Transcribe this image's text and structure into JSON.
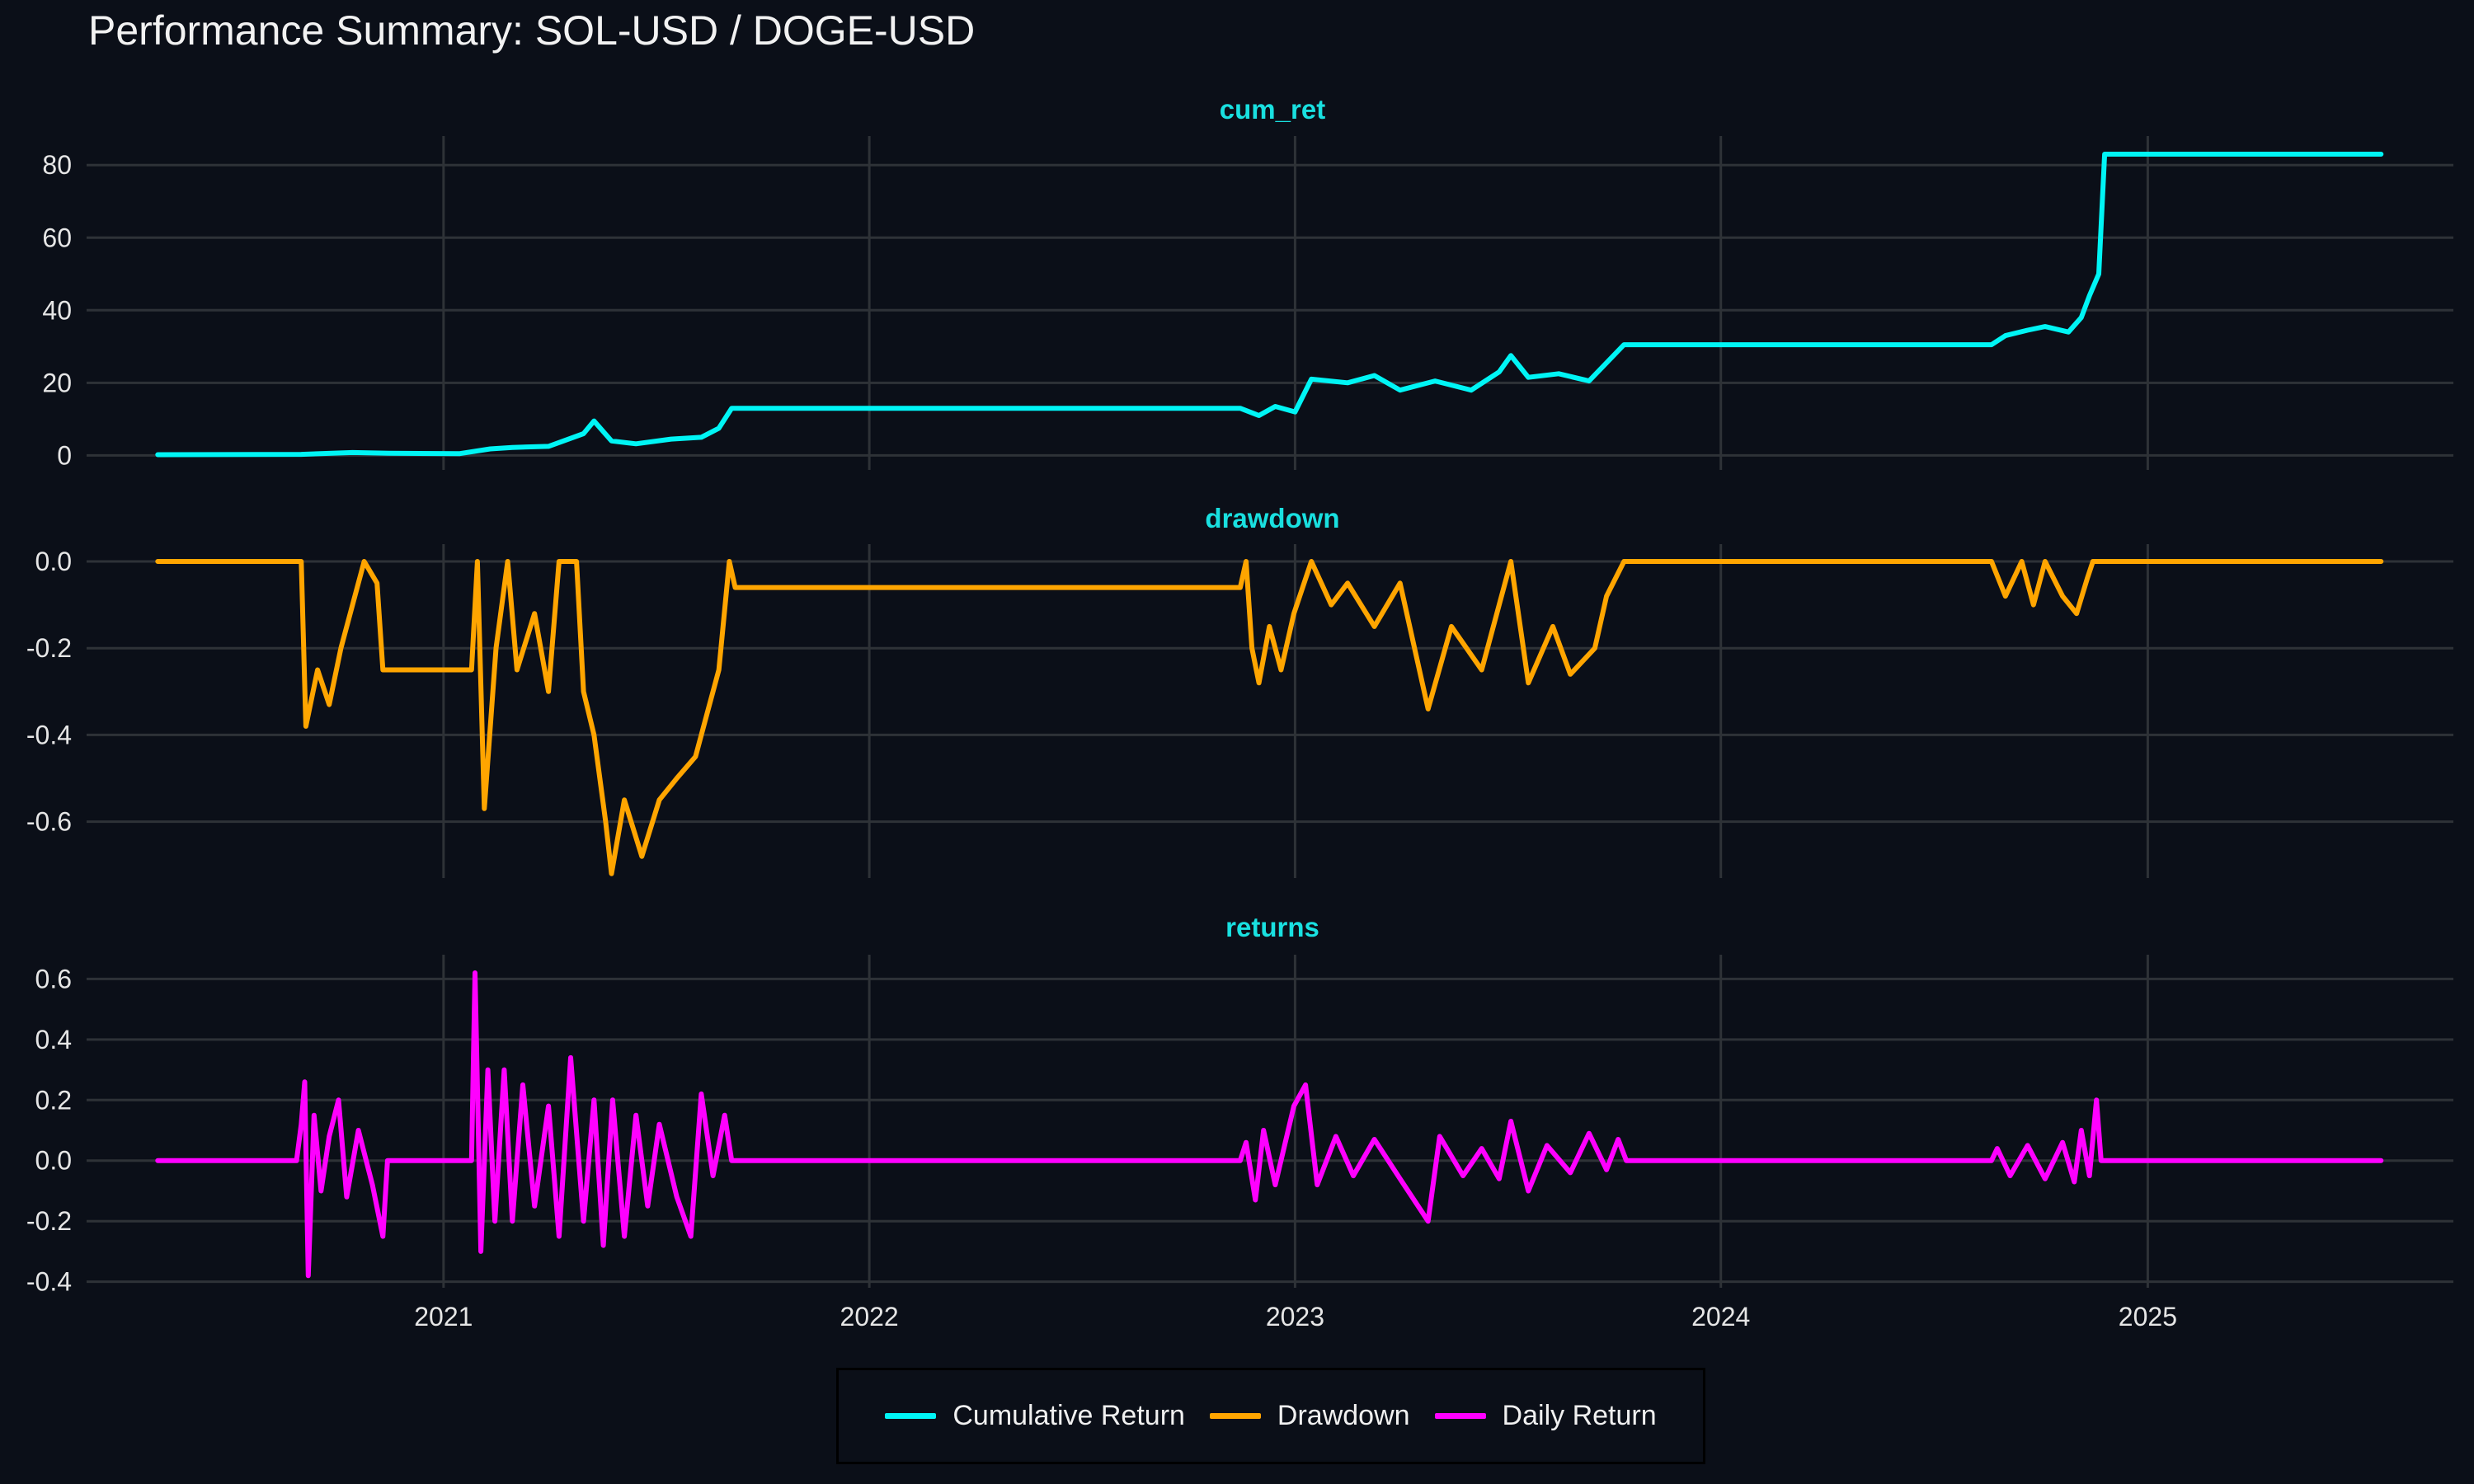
{
  "title": "Performance Summary: SOL-USD / DOGE-USD",
  "chart_data": {
    "type": "line",
    "x_ticks": [
      "2021",
      "2022",
      "2023",
      "2024",
      "2025"
    ],
    "x_range": [
      "2020-03-01",
      "2025-09-20"
    ],
    "grid": true,
    "legend_position": "bottom",
    "legend": [
      {
        "label": "Cumulative Return",
        "color": "#00f5f5"
      },
      {
        "label": "Drawdown",
        "color": "#ffa500"
      },
      {
        "label": "Daily Return",
        "color": "#ff00ff"
      }
    ],
    "panels": [
      {
        "title": "cum_ret",
        "series": "Cumulative Return",
        "color": "#00f5f5",
        "ylim": [
          -4,
          88
        ],
        "y_ticks": [
          0,
          20,
          40,
          60,
          80
        ],
        "y_tick_labels": [
          "0",
          "20",
          "40",
          "60",
          "80"
        ],
        "points": [
          [
            "2020-05-01",
            0.2
          ],
          [
            "2020-09-01",
            0.3
          ],
          [
            "2020-10-15",
            0.8
          ],
          [
            "2020-11-15",
            0.6
          ],
          [
            "2021-01-15",
            0.5
          ],
          [
            "2021-02-10",
            1.8
          ],
          [
            "2021-03-01",
            2.2
          ],
          [
            "2021-04-01",
            2.5
          ],
          [
            "2021-05-01",
            6.0
          ],
          [
            "2021-05-10",
            9.5
          ],
          [
            "2021-05-25",
            4.0
          ],
          [
            "2021-06-15",
            3.2
          ],
          [
            "2021-07-15",
            4.5
          ],
          [
            "2021-08-10",
            5.0
          ],
          [
            "2021-08-25",
            7.5
          ],
          [
            "2021-09-05",
            13.0
          ],
          [
            "2022-11-15",
            13.0
          ],
          [
            "2022-12-01",
            11.0
          ],
          [
            "2022-12-15",
            13.5
          ],
          [
            "2023-01-01",
            12.0
          ],
          [
            "2023-01-15",
            21.0
          ],
          [
            "2023-02-15",
            20.0
          ],
          [
            "2023-03-10",
            22.0
          ],
          [
            "2023-04-01",
            18.0
          ],
          [
            "2023-05-01",
            20.5
          ],
          [
            "2023-06-01",
            18.0
          ],
          [
            "2023-06-25",
            23.0
          ],
          [
            "2023-07-05",
            27.5
          ],
          [
            "2023-07-20",
            21.5
          ],
          [
            "2023-08-15",
            22.5
          ],
          [
            "2023-09-10",
            20.5
          ],
          [
            "2023-09-25",
            25.5
          ],
          [
            "2023-10-10",
            30.5
          ],
          [
            "2024-08-20",
            30.5
          ],
          [
            "2024-09-01",
            33.0
          ],
          [
            "2024-09-20",
            34.5
          ],
          [
            "2024-10-05",
            35.5
          ],
          [
            "2024-10-25",
            34.0
          ],
          [
            "2024-11-05",
            38.0
          ],
          [
            "2024-11-12",
            44.0
          ],
          [
            "2024-11-20",
            50.0
          ],
          [
            "2024-11-25",
            83.0
          ],
          [
            "2025-07-20",
            83.0
          ]
        ]
      },
      {
        "title": "drawdown",
        "series": "Drawdown",
        "color": "#ffa500",
        "ylim": [
          -0.73,
          0.04
        ],
        "y_ticks": [
          0.0,
          -0.2,
          -0.4,
          -0.6
        ],
        "y_tick_labels": [
          "0.0",
          "-0.2",
          "-0.4",
          "-0.6"
        ],
        "points": [
          [
            "2020-05-01",
            0.0
          ],
          [
            "2020-09-01",
            0.0
          ],
          [
            "2020-09-05",
            -0.38
          ],
          [
            "2020-09-15",
            -0.25
          ],
          [
            "2020-09-25",
            -0.33
          ],
          [
            "2020-10-05",
            -0.2
          ],
          [
            "2020-10-15",
            -0.1
          ],
          [
            "2020-10-25",
            0.0
          ],
          [
            "2020-11-05",
            -0.05
          ],
          [
            "2020-11-10",
            -0.25
          ],
          [
            "2021-01-25",
            -0.25
          ],
          [
            "2021-01-30",
            0.0
          ],
          [
            "2021-02-05",
            -0.57
          ],
          [
            "2021-02-15",
            -0.2
          ],
          [
            "2021-02-25",
            0.0
          ],
          [
            "2021-03-05",
            -0.25
          ],
          [
            "2021-03-20",
            -0.12
          ],
          [
            "2021-04-01",
            -0.3
          ],
          [
            "2021-04-10",
            0.0
          ],
          [
            "2021-04-25",
            0.0
          ],
          [
            "2021-05-01",
            -0.3
          ],
          [
            "2021-05-10",
            -0.4
          ],
          [
            "2021-05-20",
            -0.6
          ],
          [
            "2021-05-25",
            -0.72
          ],
          [
            "2021-06-05",
            -0.55
          ],
          [
            "2021-06-20",
            -0.68
          ],
          [
            "2021-07-05",
            -0.55
          ],
          [
            "2021-07-20",
            -0.5
          ],
          [
            "2021-08-05",
            -0.45
          ],
          [
            "2021-08-15",
            -0.35
          ],
          [
            "2021-08-25",
            -0.25
          ],
          [
            "2021-09-03",
            0.0
          ],
          [
            "2021-09-08",
            -0.06
          ],
          [
            "2022-11-15",
            -0.06
          ],
          [
            "2022-11-20",
            0.0
          ],
          [
            "2022-11-25",
            -0.2
          ],
          [
            "2022-12-01",
            -0.28
          ],
          [
            "2022-12-10",
            -0.15
          ],
          [
            "2022-12-20",
            -0.25
          ],
          [
            "2022-12-31",
            -0.12
          ],
          [
            "2023-01-15",
            0.0
          ],
          [
            "2023-02-01",
            -0.1
          ],
          [
            "2023-02-15",
            -0.05
          ],
          [
            "2023-03-10",
            -0.15
          ],
          [
            "2023-04-01",
            -0.05
          ],
          [
            "2023-04-25",
            -0.34
          ],
          [
            "2023-05-15",
            -0.15
          ],
          [
            "2023-06-10",
            -0.25
          ],
          [
            "2023-06-25",
            -0.1
          ],
          [
            "2023-07-05",
            0.0
          ],
          [
            "2023-07-20",
            -0.28
          ],
          [
            "2023-08-10",
            -0.15
          ],
          [
            "2023-08-25",
            -0.26
          ],
          [
            "2023-09-15",
            -0.2
          ],
          [
            "2023-09-25",
            -0.08
          ],
          [
            "2023-10-10",
            0.0
          ],
          [
            "2024-08-20",
            0.0
          ],
          [
            "2024-09-01",
            -0.08
          ],
          [
            "2024-09-15",
            0.0
          ],
          [
            "2024-09-25",
            -0.1
          ],
          [
            "2024-10-05",
            0.0
          ],
          [
            "2024-10-20",
            -0.08
          ],
          [
            "2024-11-01",
            -0.12
          ],
          [
            "2024-11-10",
            -0.04
          ],
          [
            "2024-11-15",
            0.0
          ],
          [
            "2025-07-20",
            0.0
          ]
        ]
      },
      {
        "title": "returns",
        "series": "Daily Return",
        "color": "#ff00ff",
        "ylim": [
          -0.42,
          0.68
        ],
        "y_ticks": [
          0.6,
          0.4,
          0.2,
          0.0,
          -0.2,
          -0.4
        ],
        "y_tick_labels": [
          "0.6",
          "0.4",
          "0.2",
          "0.0",
          "-0.2",
          "-0.4"
        ],
        "points": [
          [
            "2020-05-01",
            0.0
          ],
          [
            "2020-08-28",
            0.0
          ],
          [
            "2020-09-01",
            0.12
          ],
          [
            "2020-09-04",
            0.26
          ],
          [
            "2020-09-07",
            -0.38
          ],
          [
            "2020-09-12",
            0.15
          ],
          [
            "2020-09-18",
            -0.1
          ],
          [
            "2020-09-25",
            0.08
          ],
          [
            "2020-10-03",
            0.2
          ],
          [
            "2020-10-10",
            -0.12
          ],
          [
            "2020-10-20",
            0.1
          ],
          [
            "2020-11-01",
            -0.08
          ],
          [
            "2020-11-10",
            -0.25
          ],
          [
            "2020-11-14",
            0.0
          ],
          [
            "2021-01-25",
            0.0
          ],
          [
            "2021-01-28",
            0.62
          ],
          [
            "2021-02-02",
            -0.3
          ],
          [
            "2021-02-08",
            0.3
          ],
          [
            "2021-02-14",
            -0.2
          ],
          [
            "2021-02-22",
            0.3
          ],
          [
            "2021-03-01",
            -0.2
          ],
          [
            "2021-03-10",
            0.25
          ],
          [
            "2021-03-20",
            -0.15
          ],
          [
            "2021-04-01",
            0.18
          ],
          [
            "2021-04-10",
            -0.25
          ],
          [
            "2021-04-20",
            0.34
          ],
          [
            "2021-05-01",
            -0.2
          ],
          [
            "2021-05-10",
            0.2
          ],
          [
            "2021-05-18",
            -0.28
          ],
          [
            "2021-05-26",
            0.2
          ],
          [
            "2021-06-05",
            -0.25
          ],
          [
            "2021-06-15",
            0.15
          ],
          [
            "2021-06-25",
            -0.15
          ],
          [
            "2021-07-05",
            0.12
          ],
          [
            "2021-07-20",
            -0.12
          ],
          [
            "2021-08-01",
            -0.25
          ],
          [
            "2021-08-10",
            0.22
          ],
          [
            "2021-08-20",
            -0.05
          ],
          [
            "2021-08-30",
            0.15
          ],
          [
            "2021-09-05",
            0.0
          ],
          [
            "2022-11-15",
            0.0
          ],
          [
            "2022-11-20",
            0.06
          ],
          [
            "2022-11-28",
            -0.13
          ],
          [
            "2022-12-05",
            0.1
          ],
          [
            "2022-12-15",
            -0.08
          ],
          [
            "2022-12-31",
            0.18
          ],
          [
            "2023-01-10",
            0.25
          ],
          [
            "2023-01-20",
            -0.08
          ],
          [
            "2023-02-05",
            0.08
          ],
          [
            "2023-02-20",
            -0.05
          ],
          [
            "2023-03-10",
            0.07
          ],
          [
            "2023-04-01",
            -0.06
          ],
          [
            "2023-04-25",
            -0.2
          ],
          [
            "2023-05-05",
            0.08
          ],
          [
            "2023-05-25",
            -0.05
          ],
          [
            "2023-06-10",
            0.04
          ],
          [
            "2023-06-25",
            -0.06
          ],
          [
            "2023-07-05",
            0.13
          ],
          [
            "2023-07-20",
            -0.1
          ],
          [
            "2023-08-05",
            0.05
          ],
          [
            "2023-08-25",
            -0.04
          ],
          [
            "2023-09-10",
            0.09
          ],
          [
            "2023-09-25",
            -0.03
          ],
          [
            "2023-10-05",
            0.07
          ],
          [
            "2023-10-12",
            0.0
          ],
          [
            "2024-08-20",
            0.0
          ],
          [
            "2024-08-25",
            0.04
          ],
          [
            "2024-09-05",
            -0.05
          ],
          [
            "2024-09-20",
            0.05
          ],
          [
            "2024-10-05",
            -0.06
          ],
          [
            "2024-10-20",
            0.06
          ],
          [
            "2024-10-30",
            -0.07
          ],
          [
            "2024-11-05",
            0.1
          ],
          [
            "2024-11-12",
            -0.05
          ],
          [
            "2024-11-18",
            0.2
          ],
          [
            "2024-11-22",
            0.0
          ],
          [
            "2025-07-20",
            0.0
          ]
        ]
      }
    ]
  }
}
